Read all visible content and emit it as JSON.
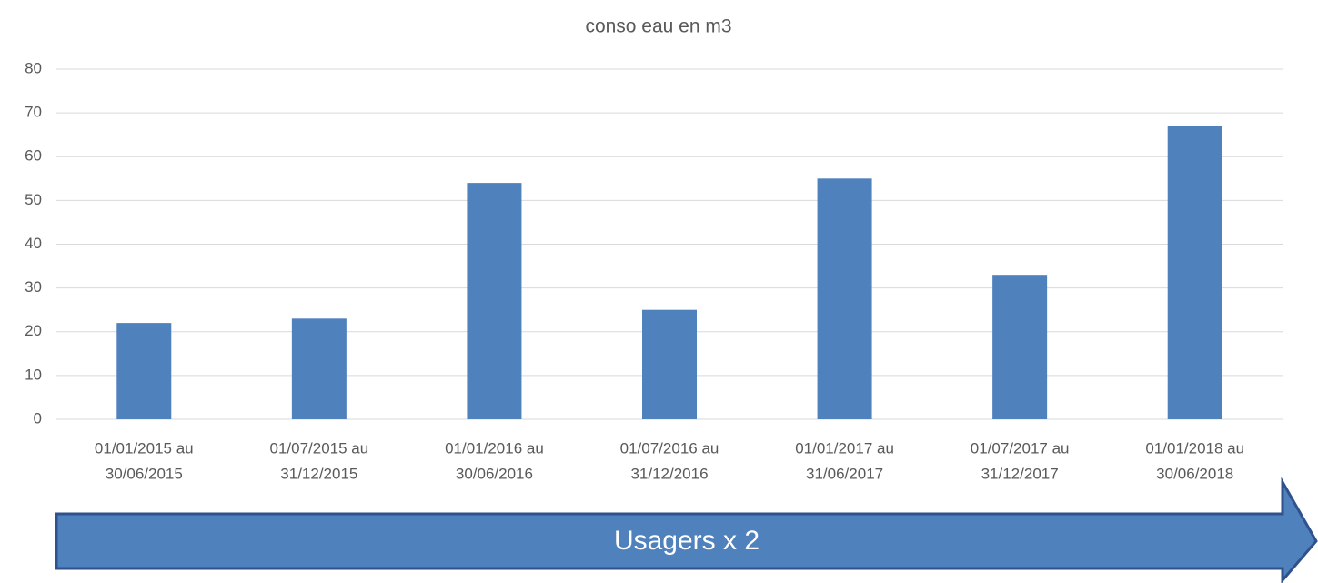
{
  "chart_data": {
    "type": "bar",
    "title": "conso eau en m3",
    "categories": [
      [
        "01/01/2015 au",
        "30/06/2015"
      ],
      [
        "01/07/2015 au",
        "31/12/2015"
      ],
      [
        "01/01/2016 au",
        "30/06/2016"
      ],
      [
        "01/07/2016 au",
        "31/12/2016"
      ],
      [
        "01/01/2017 au",
        "31/06/2017"
      ],
      [
        "01/07/2017 au",
        "31/12/2017"
      ],
      [
        "01/01/2018 au",
        "30/06/2018"
      ]
    ],
    "values": [
      22,
      23,
      54,
      25,
      55,
      33,
      67
    ],
    "color": "#4f81bd",
    "ylim": [
      0,
      80
    ],
    "yticks": [
      0,
      10,
      20,
      30,
      40,
      50,
      60,
      70,
      80
    ],
    "grid": true,
    "annotation": "Usagers x 2"
  }
}
